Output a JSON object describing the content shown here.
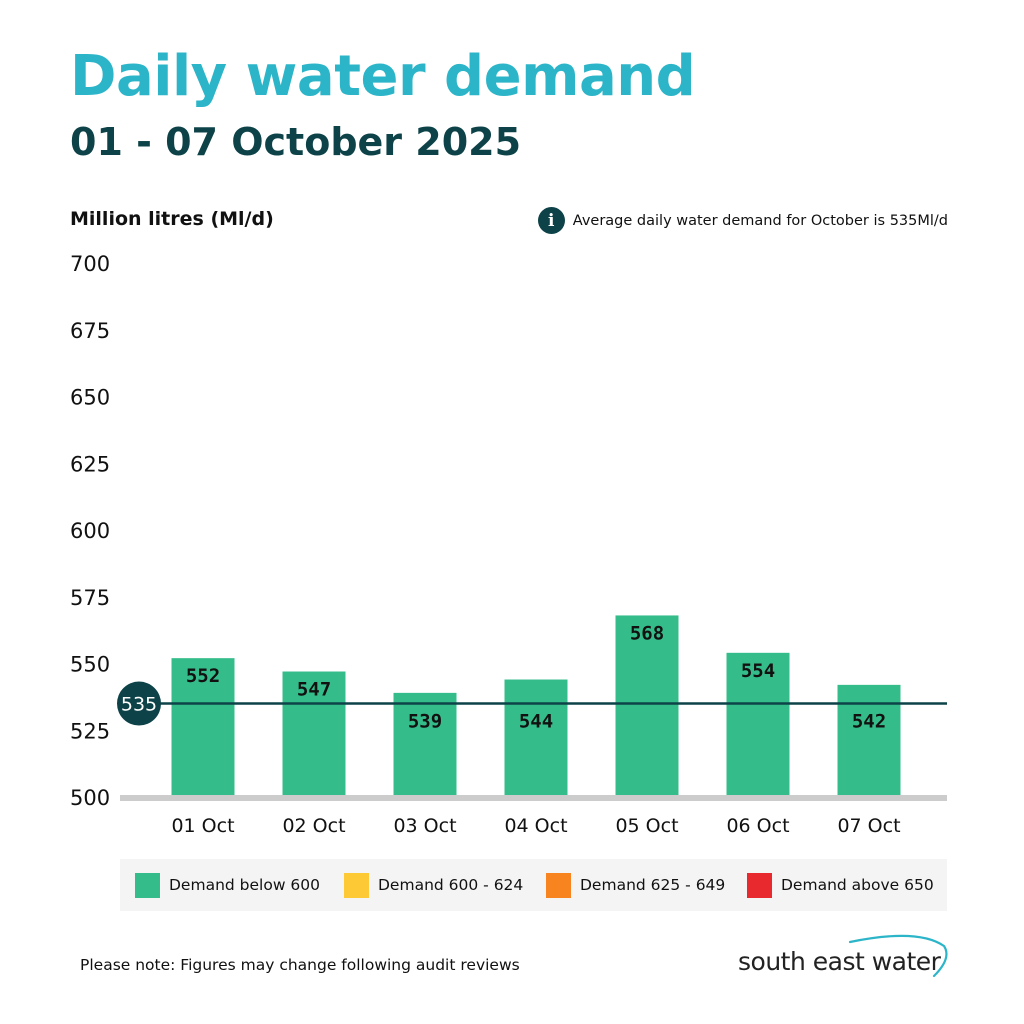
{
  "header": {
    "title": "Daily water demand",
    "subtitle": "01 - 07 October 2025"
  },
  "note": {
    "icon": "info-icon",
    "icon_glyph": "i",
    "text": "Average daily water demand for October is 535Ml/d"
  },
  "chart_data": {
    "type": "bar",
    "title": "Daily water demand",
    "ylabel": "Million litres (Ml/d)",
    "xlabel": "",
    "categories": [
      "01 Oct",
      "02 Oct",
      "03 Oct",
      "04 Oct",
      "05 Oct",
      "06 Oct",
      "07 Oct"
    ],
    "values": [
      552,
      547,
      539,
      544,
      568,
      554,
      542
    ],
    "ylim": [
      500,
      700
    ],
    "yticks": [
      700,
      675,
      650,
      625,
      600,
      575,
      550,
      525,
      500
    ],
    "average": {
      "value": 535,
      "label": "535"
    },
    "bar_color": "#34bd8a",
    "grid": false
  },
  "legend": {
    "items": [
      {
        "label": "Demand below 600",
        "color": "#34bd8a"
      },
      {
        "label": "Demand 600 - 624",
        "color": "#fdc934"
      },
      {
        "label": "Demand 625 - 649",
        "color": "#f7841e"
      },
      {
        "label": "Demand above 650",
        "color": "#e8292d"
      }
    ]
  },
  "footer": {
    "note": "Please note: Figures may change following audit reviews",
    "brand": "south east water"
  },
  "colors": {
    "title": "#2cb5c8",
    "dark": "#0d4348",
    "axis": "#cccccc"
  }
}
